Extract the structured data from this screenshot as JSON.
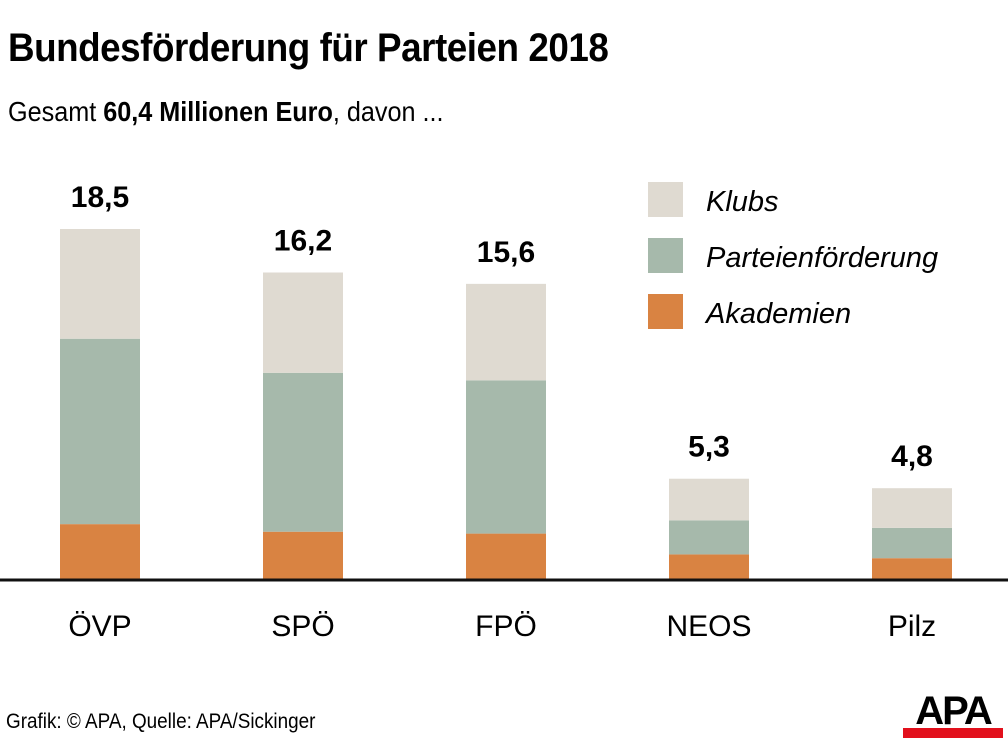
{
  "header": {
    "title": "Bundesförderung für Parteien 2018",
    "subtitle_prefix": "Gesamt ",
    "subtitle_bold": "60,4 Millionen Euro",
    "subtitle_suffix": ", davon ..."
  },
  "footer": {
    "source": "Grafik: © APA, Quelle: APA/Sickinger",
    "logo_text": "APA",
    "logo_accent_color": "#e2101c"
  },
  "chart_data": {
    "type": "bar",
    "stacked": true,
    "title": "Bundesförderung für Parteien 2018",
    "subtitle": "Gesamt 60,4 Millionen Euro, davon ...",
    "unit": "Millionen Euro",
    "xlabel": "",
    "ylabel": "",
    "ylim": [
      0,
      18.5
    ],
    "grid": false,
    "legend_position": "top-right",
    "categories": [
      "ÖVP",
      "SPÖ",
      "FPÖ",
      "NEOS",
      "Pilz"
    ],
    "totals": [
      18.5,
      16.2,
      15.6,
      5.3,
      4.8
    ],
    "total_labels": [
      "18,5",
      "16,2",
      "15,6",
      "5,3",
      "4,8"
    ],
    "series": [
      {
        "name": "Akademien",
        "color": "#d98342",
        "values": [
          2.9,
          2.5,
          2.4,
          1.3,
          1.1
        ]
      },
      {
        "name": "Parteienförderung",
        "color": "#a6b9ab",
        "values": [
          9.8,
          8.4,
          8.1,
          1.8,
          1.6
        ]
      },
      {
        "name": "Klubs",
        "color": "#dfdad1",
        "values": [
          5.8,
          5.3,
          5.1,
          2.2,
          2.1
        ]
      }
    ],
    "legend": [
      "Klubs",
      "Parteienförderung",
      "Akademien"
    ]
  }
}
